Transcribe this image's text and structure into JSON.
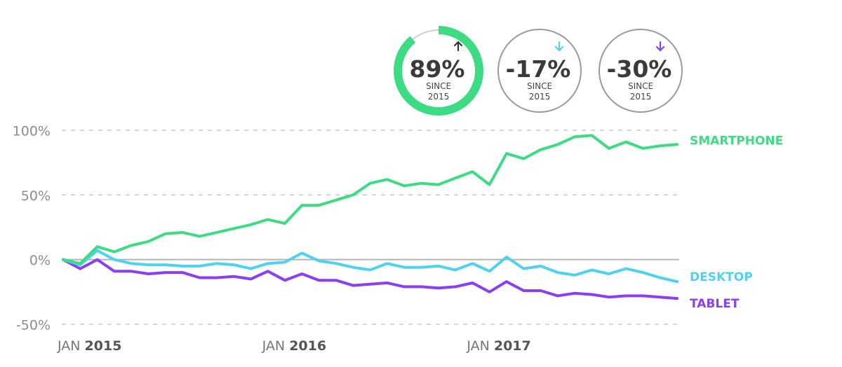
{
  "chart_data": {
    "type": "line",
    "title": "",
    "xlabel": "",
    "ylabel": "",
    "ylim": [
      -50,
      100
    ],
    "yticks": [
      100,
      50,
      0,
      -50
    ],
    "ytick_labels": [
      "100%",
      "50%",
      "0%",
      "-50%"
    ],
    "grid": true,
    "x": [
      "2015-01",
      "2015-02",
      "2015-03",
      "2015-04",
      "2015-05",
      "2015-06",
      "2015-07",
      "2015-08",
      "2015-09",
      "2015-10",
      "2015-11",
      "2015-12",
      "2016-01",
      "2016-02",
      "2016-03",
      "2016-04",
      "2016-05",
      "2016-06",
      "2016-07",
      "2016-08",
      "2016-09",
      "2016-10",
      "2016-11",
      "2016-12",
      "2017-01",
      "2017-02",
      "2017-03",
      "2017-04",
      "2017-05",
      "2017-06",
      "2017-07",
      "2017-08",
      "2017-09",
      "2017-10",
      "2017-11",
      "2017-12",
      "2018-01"
    ],
    "xticks": [
      {
        "x": "2015-01",
        "month": "JAN",
        "year": "2015"
      },
      {
        "x": "2016-01",
        "month": "JAN",
        "year": "2016"
      },
      {
        "x": "2017-01",
        "month": "JAN",
        "year": "2017"
      }
    ],
    "series": [
      {
        "name": "SMARTPHONE",
        "color": "#3ddc84",
        "values": [
          0,
          -3,
          10,
          6,
          11,
          14,
          20,
          21,
          18,
          21,
          24,
          27,
          31,
          28,
          42,
          42,
          46,
          50,
          59,
          62,
          57,
          59,
          58,
          63,
          68,
          58,
          82,
          78,
          85,
          89,
          95,
          96,
          86,
          91,
          86,
          88,
          89
        ]
      },
      {
        "name": "DESKTOP",
        "color": "#4fd1f0",
        "values": [
          0,
          -4,
          7,
          0,
          -3,
          -4,
          -4,
          -5,
          -5,
          -3,
          -4,
          -7,
          -3,
          -2,
          5,
          -1,
          -3,
          -6,
          -8,
          -3,
          -6,
          -6,
          -5,
          -8,
          -3,
          -9,
          2,
          -7,
          -5,
          -10,
          -12,
          -8,
          -11,
          -7,
          -10,
          -14,
          -17
        ]
      },
      {
        "name": "TABLET",
        "color": "#8a3ff0",
        "values": [
          0,
          -7,
          0,
          -9,
          -9,
          -11,
          -10,
          -10,
          -14,
          -14,
          -13,
          -15,
          -9,
          -16,
          -11,
          -16,
          -16,
          -20,
          -19,
          -18,
          -21,
          -21,
          -22,
          -21,
          -18,
          -25,
          -17,
          -24,
          -24,
          -28,
          -26,
          -27,
          -29,
          -28,
          -28,
          -29,
          -30
        ]
      }
    ]
  },
  "badges": [
    {
      "value": "89%",
      "caption_line1": "SINCE",
      "caption_line2": "2015",
      "arrow": "up",
      "arrow_color": "#333333",
      "ring_color": "#3ddc84",
      "progress": 0.89,
      "highlight": true
    },
    {
      "value": "-17%",
      "caption_line1": "SINCE",
      "caption_line2": "2015",
      "arrow": "down",
      "arrow_color": "#4fd1f0",
      "ring_color": "#9a9a9a",
      "progress": 1,
      "highlight": false
    },
    {
      "value": "-30%",
      "caption_line1": "SINCE",
      "caption_line2": "2015",
      "arrow": "down",
      "arrow_color": "#8a3ff0",
      "ring_color": "#9a9a9a",
      "progress": 1,
      "highlight": false
    }
  ],
  "colors": {
    "grid": "#c8c8c8",
    "zero_line": "#b5b5b5",
    "tick_text": "#8c8c8c"
  }
}
